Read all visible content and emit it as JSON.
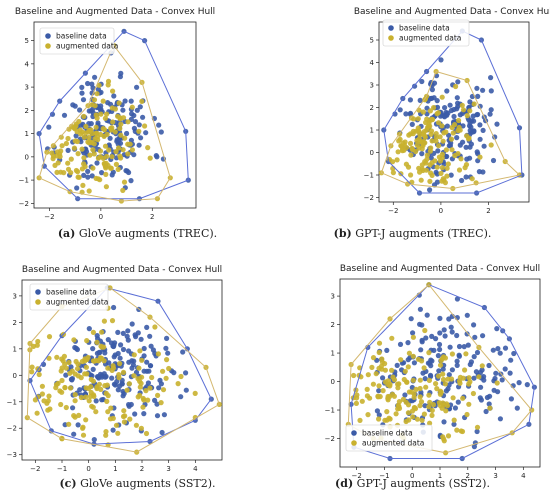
{
  "colors": {
    "baseline": "#3b5ba7",
    "augmented": "#c9b12f",
    "hull_baseline": "#5b6fd6",
    "hull_augmented": "#d4b870"
  },
  "captions": [
    {
      "letter": "(a)",
      "text": "GloVe augments (TREC)."
    },
    {
      "letter": "(b)",
      "text": "GPT-J augments (TREC)."
    },
    {
      "letter": "(c)",
      "text": "GloVe augments (SST2)."
    },
    {
      "letter": "(d)",
      "text": "GPT-J augments (SST2)."
    }
  ],
  "chart_data": [
    {
      "type": "scatter",
      "title": "Baseline and Augmented Data - Convex Hull",
      "xlim": [
        -2.6,
        3.7
      ],
      "ylim": [
        -2.2,
        5.8
      ],
      "xticks": [
        -2,
        0,
        2
      ],
      "yticks": [
        -2,
        -1,
        0,
        1,
        2,
        3,
        4,
        5
      ],
      "legend_position": "top-left",
      "series": [
        {
          "name": "baseline data",
          "seed": 11,
          "n": 190,
          "cx": 0.2,
          "cy": 1.2,
          "sx": 0.9,
          "sy": 1.2,
          "hull": [
            [
              -2.4,
              1.0
            ],
            [
              -1.6,
              2.4
            ],
            [
              -0.6,
              3.6
            ],
            [
              0.9,
              5.4
            ],
            [
              1.7,
              5.0
            ],
            [
              3.3,
              1.1
            ],
            [
              3.4,
              -1.0
            ],
            [
              1.5,
              -1.8
            ],
            [
              -0.9,
              -1.8
            ],
            [
              -2.2,
              -0.4
            ]
          ]
        },
        {
          "name": "augmented data",
          "seed": 23,
          "n": 150,
          "cx": -0.6,
          "cy": 0.6,
          "sx": 1.0,
          "sy": 1.2,
          "hull": [
            [
              -2.4,
              -0.9
            ],
            [
              -2.1,
              0.2
            ],
            [
              -0.5,
              2.2
            ],
            [
              0.5,
              4.8
            ],
            [
              1.6,
              3.2
            ],
            [
              2.7,
              -0.9
            ],
            [
              2.2,
              -1.8
            ],
            [
              0.8,
              -1.9
            ],
            [
              -1.2,
              -1.5
            ]
          ]
        }
      ]
    },
    {
      "type": "scatter",
      "title": "Baseline and Augmented Data - Convex Hull",
      "xlim": [
        -2.6,
        3.7
      ],
      "ylim": [
        -2.2,
        5.8
      ],
      "xticks": [
        -2,
        0,
        2
      ],
      "yticks": [
        -2,
        -1,
        0,
        1,
        2,
        3,
        4,
        5
      ],
      "legend_position": "top-left",
      "series": [
        {
          "name": "baseline data",
          "seed": 37,
          "n": 190,
          "cx": 0.2,
          "cy": 1.2,
          "sx": 0.9,
          "sy": 1.2,
          "hull": [
            [
              -2.4,
              1.0
            ],
            [
              -1.6,
              2.4
            ],
            [
              -0.6,
              3.6
            ],
            [
              0.9,
              5.4
            ],
            [
              1.7,
              5.0
            ],
            [
              3.3,
              1.1
            ],
            [
              3.4,
              -1.0
            ],
            [
              1.5,
              -1.8
            ],
            [
              -0.9,
              -1.8
            ],
            [
              -2.2,
              -0.4
            ]
          ]
        },
        {
          "name": "augmented data",
          "seed": 41,
          "n": 150,
          "cx": -0.5,
          "cy": 0.4,
          "sx": 1.0,
          "sy": 1.1,
          "hull": [
            [
              -2.5,
              -0.9
            ],
            [
              -2.1,
              0.3
            ],
            [
              -0.6,
              2.5
            ],
            [
              -0.2,
              3.6
            ],
            [
              1.1,
              3.2
            ],
            [
              2.7,
              -0.4
            ],
            [
              3.3,
              -1.0
            ],
            [
              0.5,
              -1.6
            ],
            [
              -1.4,
              -1.4
            ]
          ]
        }
      ]
    },
    {
      "type": "scatter",
      "title": "Baseline and Augmented Data - Convex Hull",
      "xlim": [
        -2.5,
        5.0
      ],
      "ylim": [
        -3.2,
        3.6
      ],
      "xticks": [
        -2,
        -1,
        0,
        1,
        2,
        3,
        4
      ],
      "yticks": [
        -3,
        -2,
        -1,
        0,
        1,
        2,
        3
      ],
      "legend_position": "top-left",
      "series": [
        {
          "name": "baseline data",
          "seed": 53,
          "n": 190,
          "cx": 1.0,
          "cy": 0.1,
          "sx": 1.3,
          "sy": 1.1,
          "hull": [
            [
              -2.2,
              -0.2
            ],
            [
              -1.0,
              1.5
            ],
            [
              0.7,
              3.3
            ],
            [
              2.6,
              2.8
            ],
            [
              3.7,
              1.0
            ],
            [
              4.6,
              -0.9
            ],
            [
              4.0,
              -1.7
            ],
            [
              2.3,
              -2.5
            ],
            [
              0.2,
              -2.6
            ],
            [
              -1.4,
              -2.1
            ]
          ]
        },
        {
          "name": "augmented data",
          "seed": 59,
          "n": 170,
          "cx": 0.2,
          "cy": -0.4,
          "sx": 1.5,
          "sy": 1.0,
          "hull": [
            [
              -2.3,
              -1.6
            ],
            [
              -2.2,
              1.2
            ],
            [
              -1.0,
              2.6
            ],
            [
              0.8,
              3.3
            ],
            [
              2.3,
              2.2
            ],
            [
              4.4,
              0.3
            ],
            [
              4.9,
              -1.1
            ],
            [
              1.8,
              -2.9
            ],
            [
              -1.0,
              -2.4
            ]
          ]
        }
      ]
    },
    {
      "type": "scatter",
      "title": "Baseline and Augmented Data - Convex Hull",
      "xlim": [
        -2.6,
        4.6
      ],
      "ylim": [
        -3.0,
        3.6
      ],
      "xticks": [
        -2,
        -1,
        0,
        1,
        2,
        3,
        4
      ],
      "yticks": [
        -2,
        -1,
        0,
        1,
        2,
        3
      ],
      "legend_position": "bottom-left",
      "series": [
        {
          "name": "baseline data",
          "seed": 67,
          "n": 190,
          "cx": 1.0,
          "cy": 0.1,
          "sx": 1.3,
          "sy": 1.1,
          "hull": [
            [
              -2.2,
              -0.8
            ],
            [
              -1.6,
              1.2
            ],
            [
              0.6,
              3.4
            ],
            [
              2.6,
              2.6
            ],
            [
              3.5,
              1.5
            ],
            [
              4.4,
              -0.2
            ],
            [
              4.2,
              -1.5
            ],
            [
              1.8,
              -2.7
            ],
            [
              -0.8,
              -2.7
            ],
            [
              -2.1,
              -2.3
            ]
          ]
        },
        {
          "name": "augmented data",
          "seed": 71,
          "n": 170,
          "cx": 0.0,
          "cy": -0.5,
          "sx": 1.5,
          "sy": 1.0,
          "hull": [
            [
              -2.3,
              -1.5
            ],
            [
              -2.2,
              0.6
            ],
            [
              -0.8,
              2.2
            ],
            [
              0.6,
              3.4
            ],
            [
              2.4,
              1.2
            ],
            [
              4.3,
              -1.0
            ],
            [
              3.6,
              -1.8
            ],
            [
              1.2,
              -2.5
            ],
            [
              -1.4,
              -2.0
            ]
          ]
        }
      ]
    }
  ]
}
